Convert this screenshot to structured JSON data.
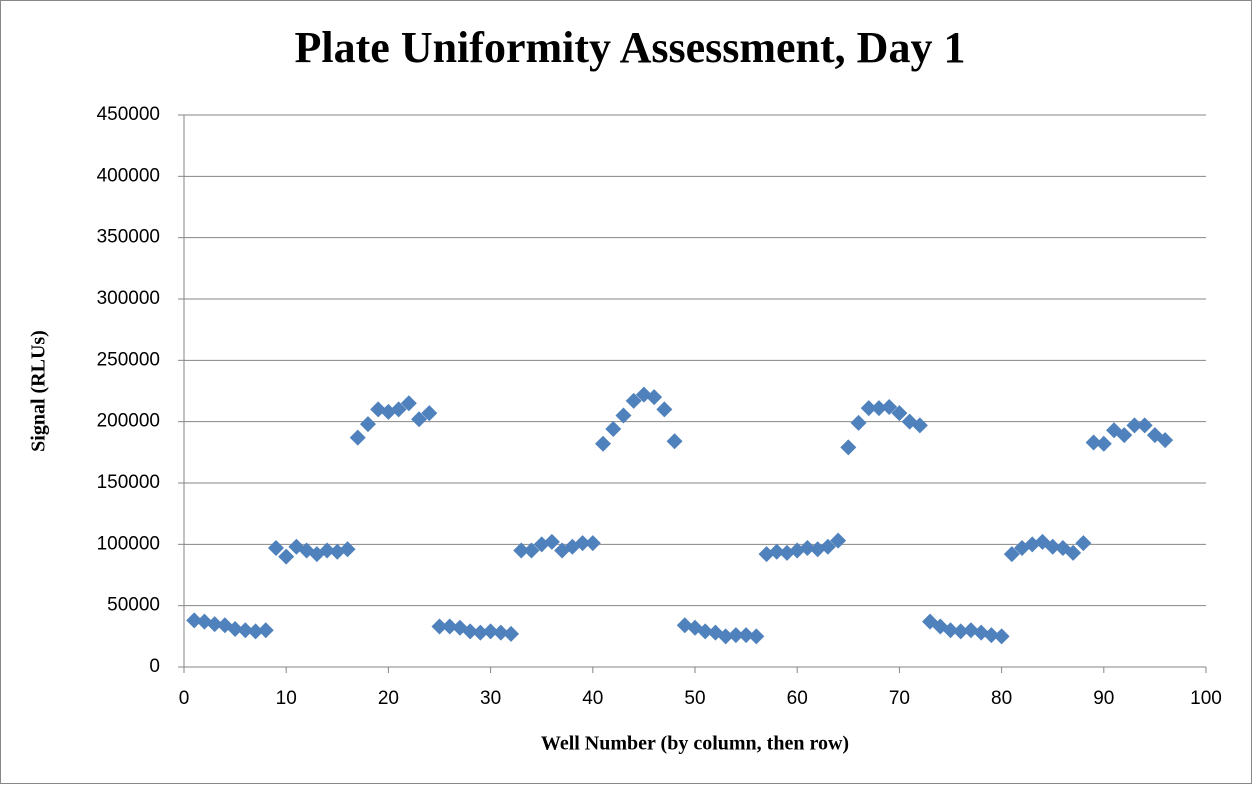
{
  "chart_data": {
    "type": "scatter",
    "title": "Plate Uniformity Assessment, Day 1",
    "x_label": "Well Number (by column, then row)",
    "y_label": "Signal (RLUs)",
    "x": [
      1,
      2,
      3,
      4,
      5,
      6,
      7,
      8,
      9,
      10,
      11,
      12,
      13,
      14,
      15,
      16,
      17,
      18,
      19,
      20,
      21,
      22,
      23,
      24,
      25,
      26,
      27,
      28,
      29,
      30,
      31,
      32,
      33,
      34,
      35,
      36,
      37,
      38,
      39,
      40,
      41,
      42,
      43,
      44,
      45,
      46,
      47,
      48,
      49,
      50,
      51,
      52,
      53,
      54,
      55,
      56,
      57,
      58,
      59,
      60,
      61,
      62,
      63,
      64,
      65,
      66,
      67,
      68,
      69,
      70,
      71,
      72,
      73,
      74,
      75,
      76,
      77,
      78,
      79,
      80,
      81,
      82,
      83,
      84,
      85,
      86,
      87,
      88,
      89,
      90,
      91,
      92,
      93,
      94,
      95,
      96
    ],
    "values": [
      38000,
      37000,
      35000,
      34000,
      31000,
      30000,
      29000,
      30000,
      97000,
      90000,
      98000,
      95000,
      92000,
      95000,
      94000,
      96000,
      187000,
      198000,
      210000,
      208000,
      210000,
      215000,
      202000,
      207000,
      33000,
      33000,
      32000,
      29000,
      28000,
      29000,
      28000,
      27000,
      95000,
      95000,
      100000,
      102000,
      95000,
      98000,
      101000,
      101000,
      182000,
      194000,
      205000,
      217000,
      222000,
      220000,
      210000,
      184000,
      34000,
      32000,
      29000,
      28000,
      25000,
      26000,
      26000,
      25000,
      92000,
      94000,
      93000,
      95000,
      97000,
      96000,
      98000,
      103000,
      179000,
      199000,
      211000,
      211000,
      212000,
      207000,
      200000,
      197000,
      37000,
      33000,
      30000,
      29000,
      30000,
      28000,
      26000,
      25000,
      92000,
      97000,
      100000,
      102000,
      98000,
      97000,
      93000,
      101000,
      183000,
      182000,
      193000,
      189000,
      197000,
      197000,
      189000,
      185000
    ],
    "color": "#4f81bd",
    "xlim": [
      0,
      100
    ],
    "xticks": [
      0,
      10,
      20,
      30,
      40,
      50,
      60,
      70,
      80,
      90,
      100
    ],
    "ylim": [
      0,
      450000
    ],
    "yticks": [
      0,
      50000,
      100000,
      150000,
      200000,
      250000,
      300000,
      350000,
      400000,
      450000
    ],
    "grid": true
  }
}
